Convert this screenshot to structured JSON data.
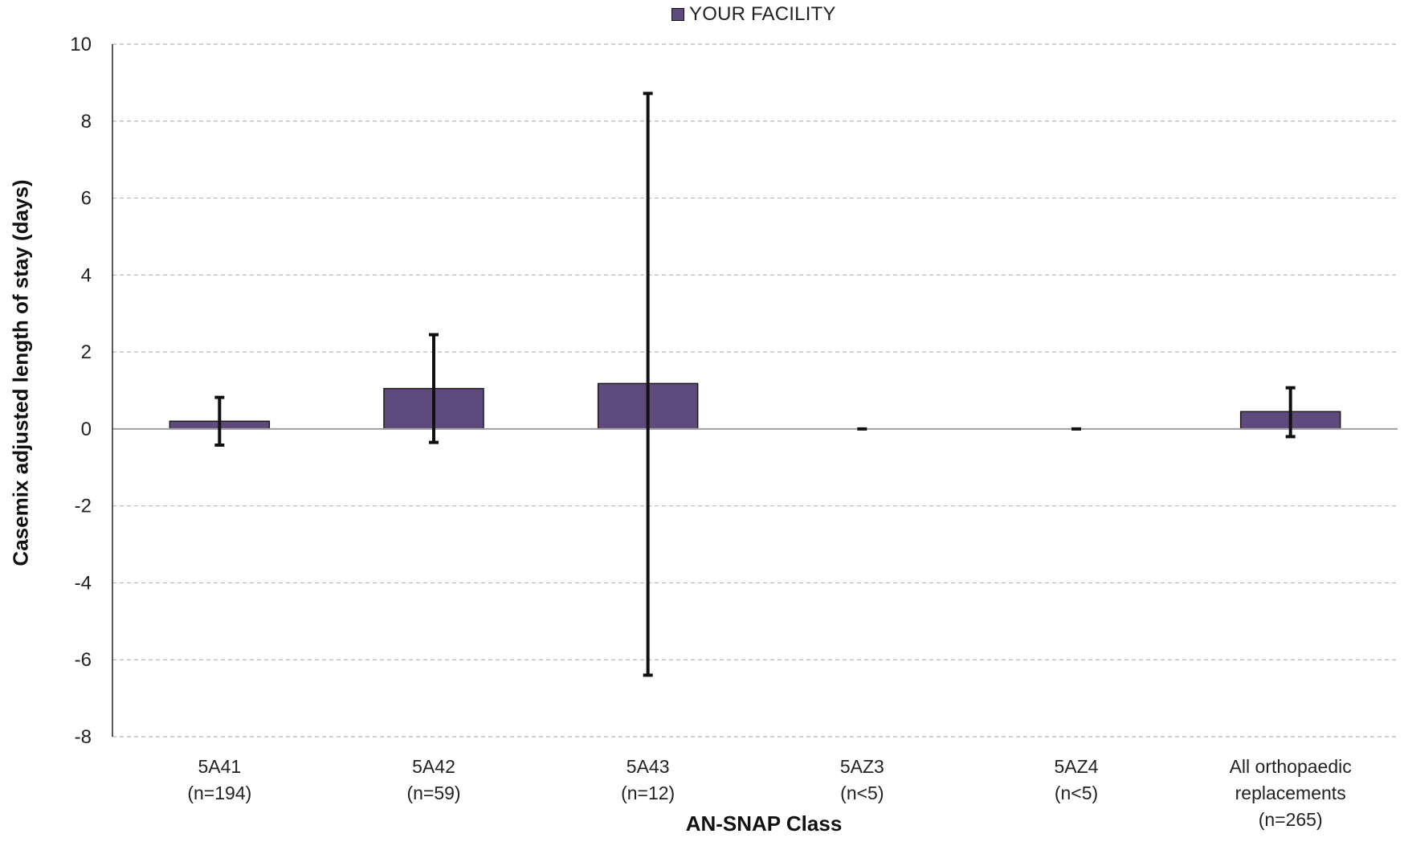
{
  "chart_data": {
    "type": "bar",
    "title": "",
    "xlabel": "AN-SNAP Class",
    "ylabel": "Casemix adjusted length of stay (days)",
    "ylim": [
      -8,
      10
    ],
    "yticks": [
      10,
      8,
      6,
      4,
      2,
      0,
      -2,
      -4,
      -6,
      -8
    ],
    "grid": true,
    "legend_position": "top-center",
    "categories": [
      [
        "5A41",
        "(n=194)"
      ],
      [
        "5A42",
        "(n=59)"
      ],
      [
        "5A43",
        "(n=12)"
      ],
      [
        "5AZ3",
        "(n<5)"
      ],
      [
        "5AZ4",
        "(n<5)"
      ],
      [
        "All orthopaedic",
        "replacements",
        "(n=265)"
      ]
    ],
    "series": [
      {
        "name": "YOUR FACILITY",
        "color": "#5e4a7c",
        "values": [
          0.2,
          1.05,
          1.18,
          0.0,
          0.0,
          0.45
        ],
        "error_low": [
          -0.42,
          -0.35,
          -6.4,
          0.0,
          0.0,
          -0.2
        ],
        "error_high": [
          0.82,
          2.45,
          8.72,
          0.0,
          0.0,
          1.07
        ]
      }
    ]
  }
}
